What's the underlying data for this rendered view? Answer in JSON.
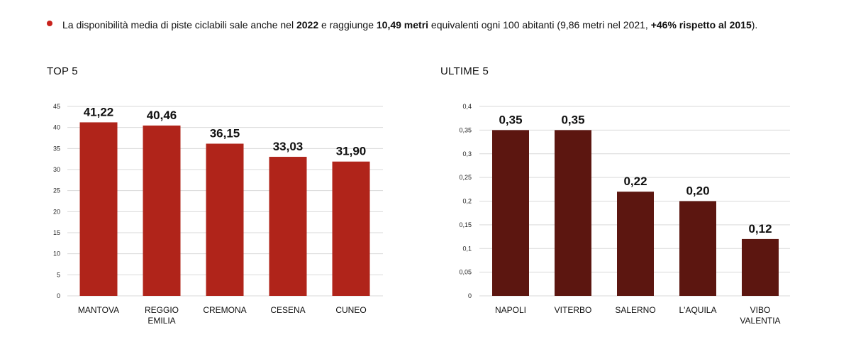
{
  "note": {
    "parts": [
      {
        "text": "La disponibilità media di piste ciclabili sale anche nel ",
        "bold": false
      },
      {
        "text": "2022",
        "bold": true
      },
      {
        "text": " e raggiunge ",
        "bold": false
      },
      {
        "text": "10,49 metri",
        "bold": true
      },
      {
        "text": " equivalenti ogni 100 abitanti (9,86 metri nel 2021, ",
        "bold": false
      },
      {
        "text": "+46% rispetto al 2015",
        "bold": true
      },
      {
        "text": ").",
        "bold": false
      }
    ],
    "bullet_color": "#c8221c"
  },
  "chart_data": [
    {
      "type": "bar",
      "title": "TOP 5",
      "categories": [
        "MANTOVA",
        "REGGIO EMILIA",
        "CREMONA",
        "CESENA",
        "CUNEO"
      ],
      "values": [
        41.22,
        40.46,
        36.15,
        33.03,
        31.9
      ],
      "value_labels": [
        "41,22",
        "40,46",
        "36,15",
        "33,03",
        "31,90"
      ],
      "ylim": [
        0,
        45
      ],
      "yticks": [
        "0",
        "5",
        "10",
        "15",
        "20",
        "25",
        "30",
        "35",
        "40",
        "45"
      ],
      "ytick_values": [
        0,
        5,
        10,
        15,
        20,
        25,
        30,
        35,
        40,
        45
      ],
      "grid": true,
      "color": "#b0241a"
    },
    {
      "type": "bar",
      "title": "ULTIME 5",
      "categories": [
        "NAPOLI",
        "VITERBO",
        "SALERNO",
        "L'AQUILA",
        "VIBO VALENTIA"
      ],
      "values": [
        0.35,
        0.35,
        0.22,
        0.2,
        0.12
      ],
      "value_labels": [
        "0,35",
        "0,35",
        "0,22",
        "0,20",
        "0,12"
      ],
      "ylim": [
        0,
        0.4
      ],
      "yticks": [
        "0",
        "0,05",
        "0,1",
        "0,15",
        "0,2",
        "0,25",
        "0,3",
        "0,35",
        "0,4"
      ],
      "ytick_values": [
        0,
        0.05,
        0.1,
        0.15,
        0.2,
        0.25,
        0.3,
        0.35,
        0.4
      ],
      "grid": true,
      "color": "#5c1610"
    }
  ]
}
